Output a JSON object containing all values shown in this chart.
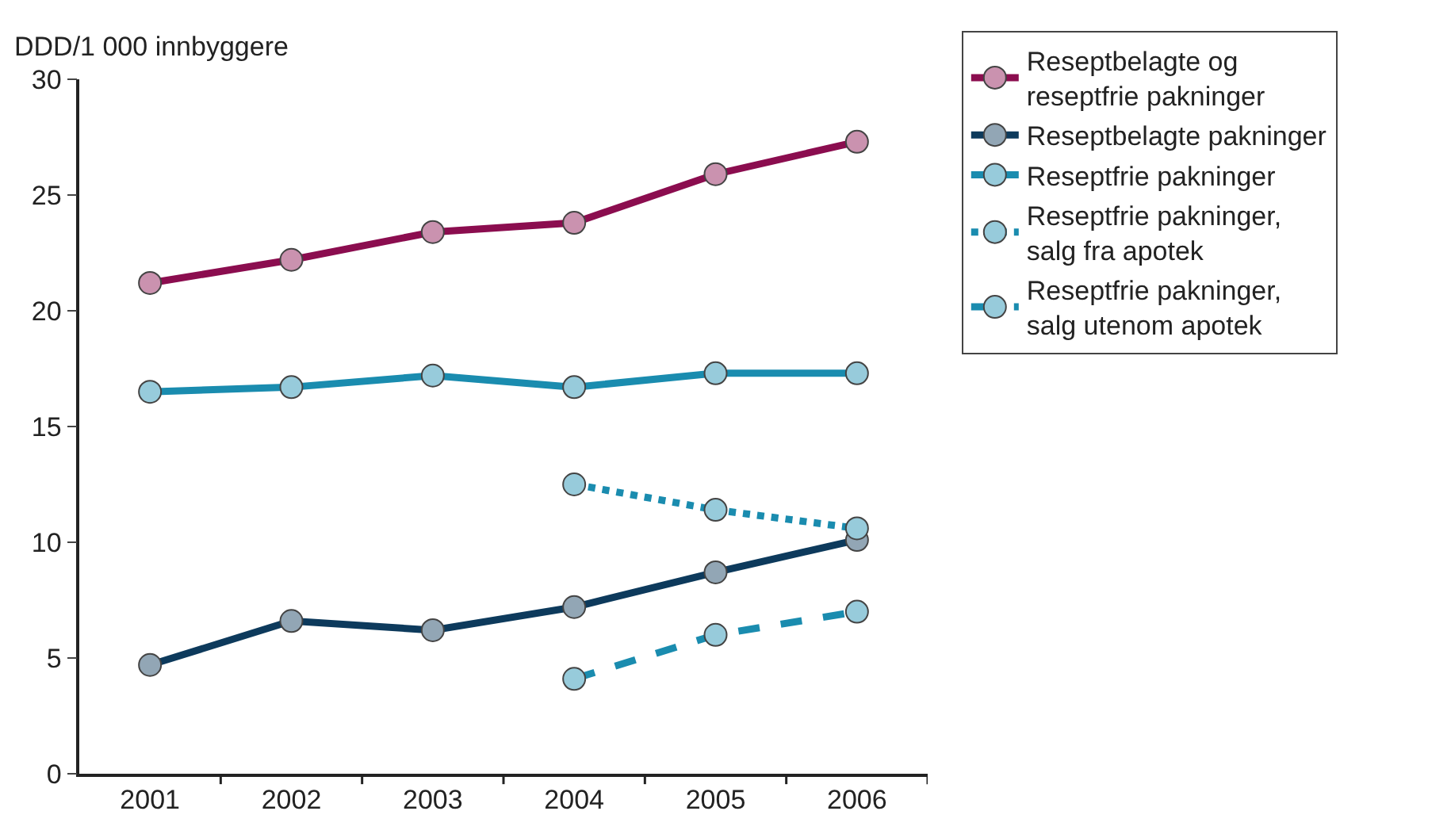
{
  "chart_data": {
    "type": "line",
    "ylabel": "DDD/1 000 innbyggere",
    "categories": [
      "2001",
      "2002",
      "2003",
      "2004",
      "2005",
      "2006"
    ],
    "ylim": [
      0,
      30
    ],
    "yticks": [
      0,
      5,
      10,
      15,
      20,
      25,
      30
    ],
    "legend": "top right",
    "marker": "circle",
    "series": [
      {
        "name": "Reseptbelagte og\nreseptfrie pakninger",
        "color": "#8b0d4f",
        "line_style": "solid",
        "values": [
          21.2,
          22.2,
          23.4,
          23.8,
          25.9,
          27.3
        ]
      },
      {
        "name": "Reseptbelagte pakninger",
        "color": "#0d3a5c",
        "line_style": "solid",
        "values": [
          4.7,
          6.6,
          6.2,
          7.2,
          8.7,
          10.1
        ]
      },
      {
        "name": "Reseptfrie pakninger",
        "color": "#1a8caf",
        "line_style": "solid",
        "values": [
          16.5,
          16.7,
          17.2,
          16.7,
          17.3,
          17.3
        ]
      },
      {
        "name": "Reseptfrie pakninger,\nsalg fra apotek",
        "color": "#1a8caf",
        "line_style": "dotted",
        "values": [
          null,
          null,
          null,
          12.5,
          11.4,
          10.6
        ]
      },
      {
        "name": "Reseptfrie pakninger,\nsalg utenom apotek",
        "color": "#1a8caf",
        "line_style": "dashed",
        "values": [
          null,
          null,
          null,
          4.1,
          6.0,
          7.0
        ]
      }
    ]
  }
}
